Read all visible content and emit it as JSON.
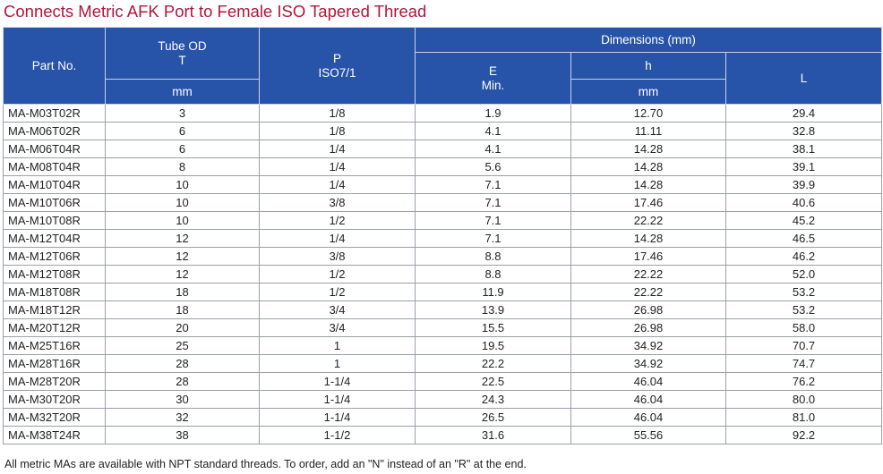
{
  "title": "Connects Metric AFK Port to Female ISO Tapered Thread",
  "headers": {
    "part_no": "Part No.",
    "tube_od": "Tube OD",
    "tube_od_symbol": "T",
    "tube_od_unit": "mm",
    "p": "P",
    "p_std": "ISO7/1",
    "dimensions": "Dimensions (mm)",
    "e": "E",
    "e_min": "Min.",
    "h": "h",
    "h_unit": "mm",
    "l": "L"
  },
  "rows": [
    [
      "MA-M03T02R",
      "3",
      "1/8",
      "1.9",
      "12.70",
      "29.4"
    ],
    [
      "MA-M06T02R",
      "6",
      "1/8",
      "4.1",
      "11.11",
      "32.8"
    ],
    [
      "MA-M06T04R",
      "6",
      "1/4",
      "4.1",
      "14.28",
      "38.1"
    ],
    [
      "MA-M08T04R",
      "8",
      "1/4",
      "5.6",
      "14.28",
      "39.1"
    ],
    [
      "MA-M10T04R",
      "10",
      "1/4",
      "7.1",
      "14.28",
      "39.9"
    ],
    [
      "MA-M10T06R",
      "10",
      "3/8",
      "7.1",
      "17.46",
      "40.6"
    ],
    [
      "MA-M10T08R",
      "10",
      "1/2",
      "7.1",
      "22.22",
      "45.2"
    ],
    [
      "MA-M12T04R",
      "12",
      "1/4",
      "7.1",
      "14.28",
      "46.5"
    ],
    [
      "MA-M12T06R",
      "12",
      "3/8",
      "8.8",
      "17.46",
      "46.2"
    ],
    [
      "MA-M12T08R",
      "12",
      "1/2",
      "8.8",
      "22.22",
      "52.0"
    ],
    [
      "MA-M18T08R",
      "18",
      "1/2",
      "11.9",
      "22.22",
      "53.2"
    ],
    [
      "MA-M18T12R",
      "18",
      "3/4",
      "13.9",
      "26.98",
      "53.2"
    ],
    [
      "MA-M20T12R",
      "20",
      "3/4",
      "15.5",
      "26.98",
      "58.0"
    ],
    [
      "MA-M25T16R",
      "25",
      "1",
      "19.5",
      "34.92",
      "70.7"
    ],
    [
      "MA-M28T16R",
      "28",
      "1",
      "22.2",
      "34.92",
      "74.7"
    ],
    [
      "MA-M28T20R",
      "28",
      "1-1/4",
      "22.5",
      "46.04",
      "76.2"
    ],
    [
      "MA-M30T20R",
      "30",
      "1-1/4",
      "24.3",
      "46.04",
      "80.0"
    ],
    [
      "MA-M32T20R",
      "32",
      "1-1/4",
      "26.5",
      "46.04",
      "81.0"
    ],
    [
      "MA-M38T24R",
      "38",
      "1-1/2",
      "31.6",
      "55.56",
      "92.2"
    ]
  ],
  "footnote": "All metric MAs are available with NPT standard threads. To order, add an \"N\" instead of an \"R\" at the end.",
  "colors": {
    "header_bg": "#2753a8",
    "title": "#b0173b"
  }
}
